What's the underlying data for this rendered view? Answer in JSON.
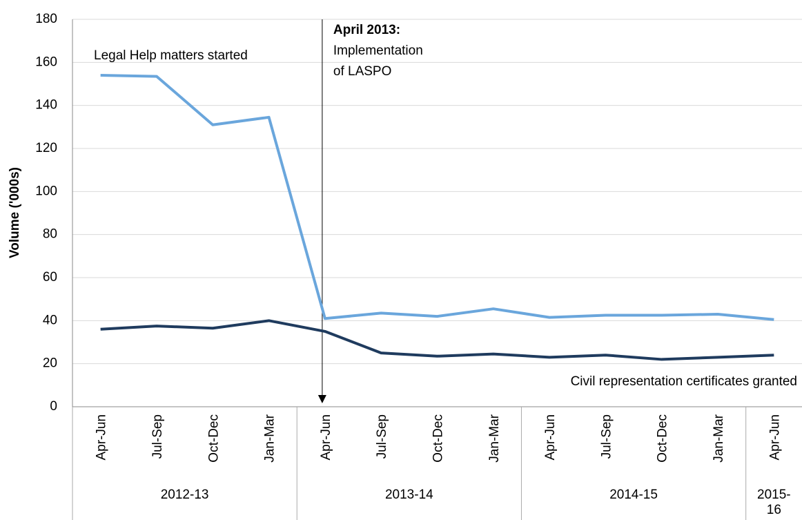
{
  "chart_data": {
    "type": "line",
    "y_label": "Volume ('000s)",
    "categories": [
      "Apr-Jun",
      "Jul-Sep",
      "Oct-Dec",
      "Jan-Mar",
      "Apr-Jun",
      "Jul-Sep",
      "Oct-Dec",
      "Jan-Mar",
      "Apr-Jun",
      "Jul-Sep",
      "Oct-Dec",
      "Jan-Mar",
      "Apr-Jun"
    ],
    "groups": [
      {
        "label": "2012-13",
        "span": 4
      },
      {
        "label": "2013-14",
        "span": 4
      },
      {
        "label": "2014-15",
        "span": 4
      },
      {
        "label": [
          "2015-",
          "16"
        ],
        "span": 1
      }
    ],
    "series": [
      {
        "name": "Legal Help matters started",
        "color": "#6aa6dc",
        "values": [
          154,
          153.5,
          131,
          134.5,
          41,
          43.5,
          42,
          45.5,
          41.5,
          42.5,
          42.5,
          43,
          40.5
        ]
      },
      {
        "name": "Civil representation certificates granted",
        "color": "#1f3b5e",
        "values": [
          36,
          37.5,
          36.5,
          40,
          35,
          25,
          23.5,
          24.5,
          23,
          24,
          22,
          23,
          24
        ]
      }
    ],
    "annotation": [
      "April 2013:",
      "Implementation",
      "of LASPO"
    ],
    "ylim": [
      0,
      180
    ],
    "yticks": [
      0,
      20,
      40,
      60,
      80,
      100,
      120,
      140,
      160,
      180
    ],
    "grid": true
  }
}
